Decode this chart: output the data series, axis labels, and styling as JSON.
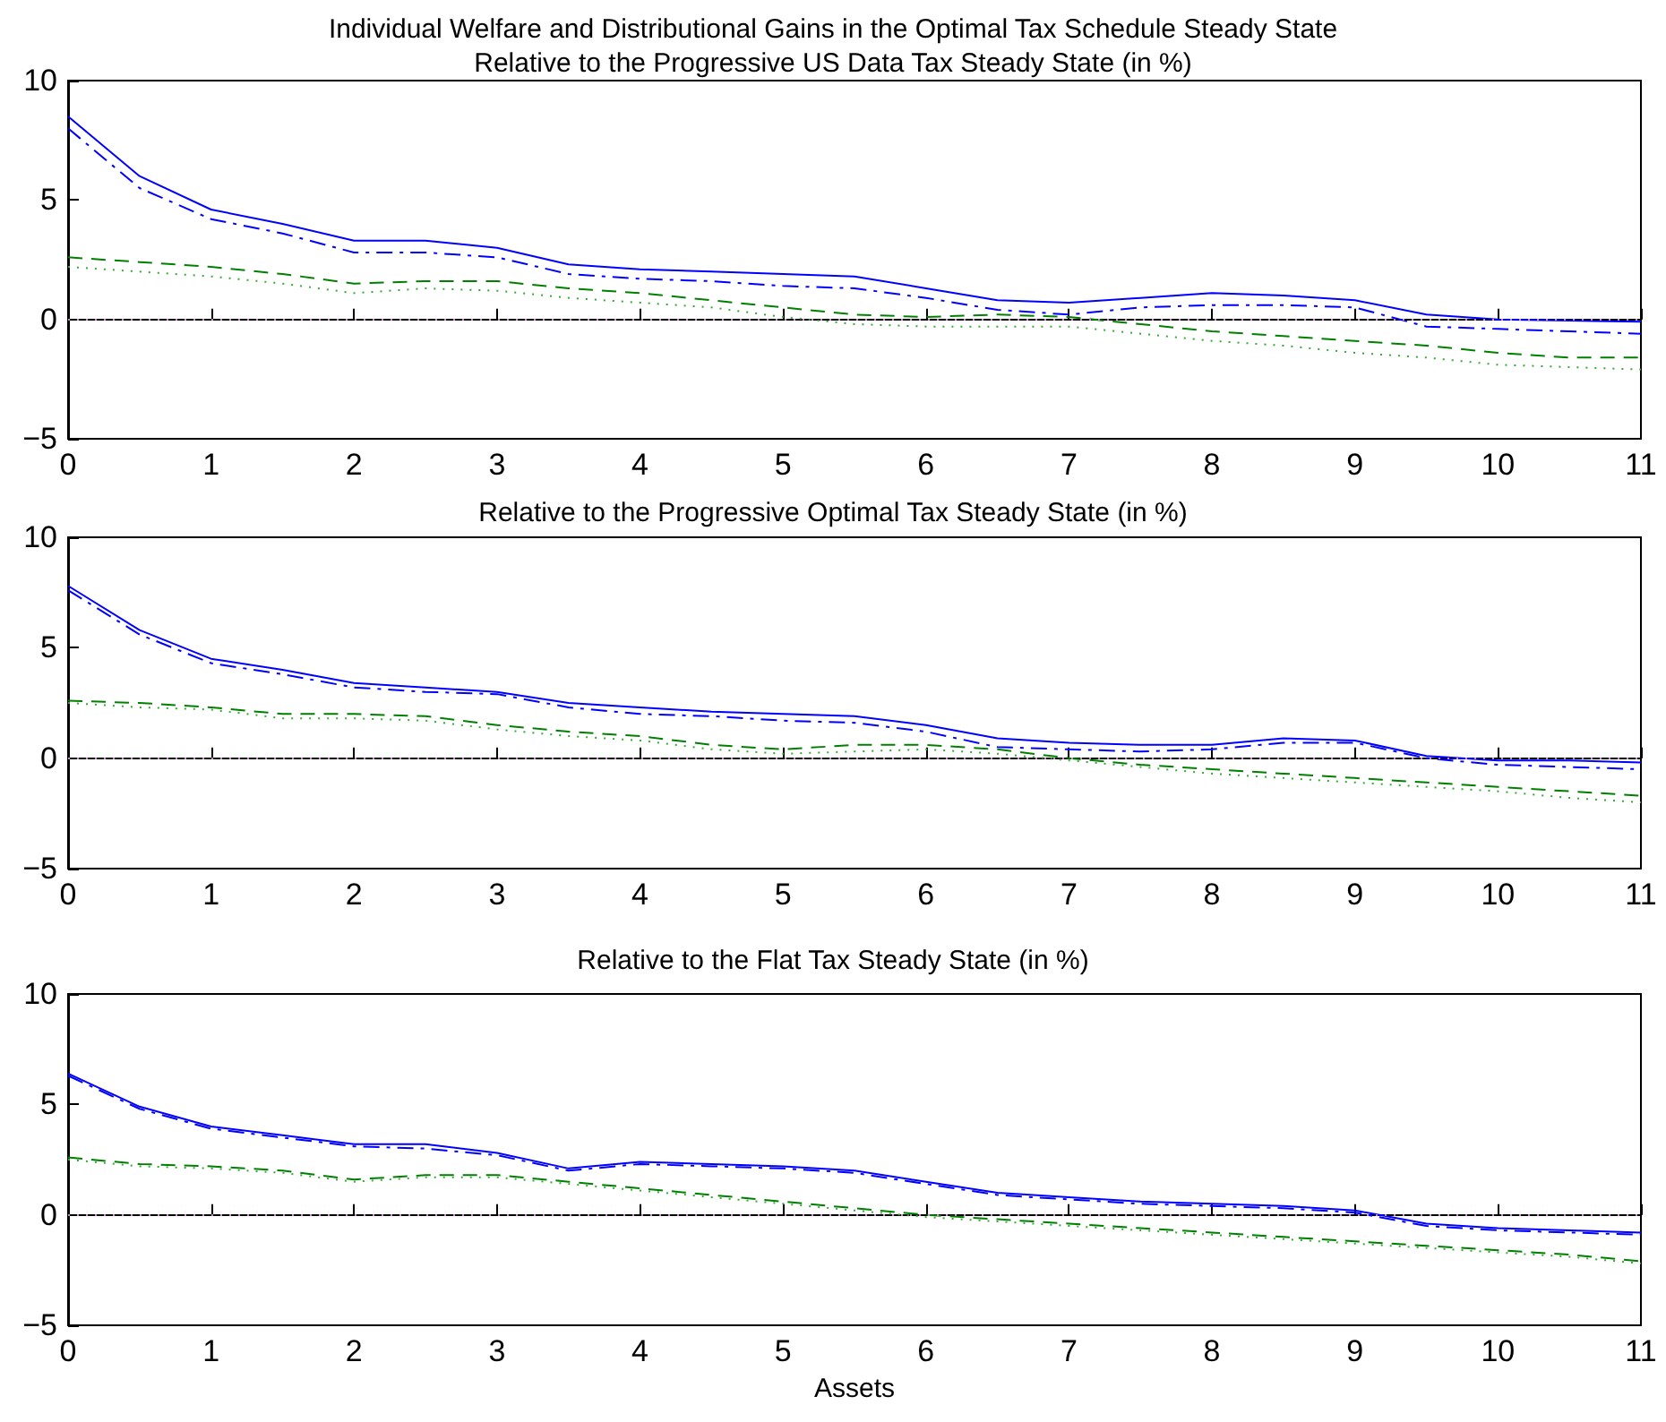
{
  "chart_data": [
    {
      "type": "line",
      "title": "Individual Welfare and Distributional Gains in the Optimal Tax Schedule Steady State",
      "subtitle": "Relative to the Progressive US Data Tax Steady State (in %)",
      "x": [
        0,
        0.5,
        1,
        1.5,
        2,
        2.5,
        3,
        3.5,
        4,
        4.5,
        5,
        5.5,
        6,
        6.5,
        7,
        7.5,
        8,
        8.5,
        9,
        9.5,
        10,
        10.5,
        11
      ],
      "series": [
        {
          "color": "#0000ff",
          "line_style": "solid",
          "values": [
            8.5,
            6.0,
            4.6,
            4.0,
            3.3,
            3.3,
            3.0,
            2.3,
            2.1,
            2.0,
            1.9,
            1.8,
            1.3,
            0.8,
            0.7,
            0.9,
            1.1,
            1.0,
            0.8,
            0.2,
            0.0,
            -0.05,
            -0.1
          ]
        },
        {
          "color": "#0000ff",
          "line_style": "dashed",
          "values": [
            8.0,
            5.5,
            4.2,
            3.6,
            2.8,
            2.8,
            2.6,
            1.9,
            1.7,
            1.6,
            1.4,
            1.3,
            0.9,
            0.4,
            0.2,
            0.5,
            0.6,
            0.6,
            0.5,
            -0.3,
            -0.4,
            -0.5,
            -0.6
          ]
        },
        {
          "color": "#008000",
          "line_style": "dashed",
          "values": [
            2.6,
            2.4,
            2.2,
            1.9,
            1.5,
            1.6,
            1.6,
            1.3,
            1.1,
            0.8,
            0.5,
            0.2,
            0.1,
            0.2,
            0.1,
            -0.2,
            -0.5,
            -0.7,
            -0.9,
            -1.1,
            -1.4,
            -1.6,
            -1.6
          ]
        },
        {
          "color": "#33aa33",
          "line_style": "dotted",
          "values": [
            2.2,
            2.0,
            1.8,
            1.5,
            1.1,
            1.3,
            1.2,
            0.9,
            0.7,
            0.5,
            0.1,
            -0.2,
            -0.3,
            -0.3,
            -0.3,
            -0.6,
            -0.9,
            -1.1,
            -1.4,
            -1.6,
            -1.9,
            -2.0,
            -2.1
          ]
        }
      ],
      "xlim": [
        0,
        11
      ],
      "xticks": [
        0,
        1,
        2,
        3,
        4,
        5,
        6,
        7,
        8,
        9,
        10,
        11
      ],
      "ylim": [
        -5,
        10
      ],
      "yticks": [
        -5,
        0,
        5,
        10
      ],
      "ref_lines": [
        {
          "axis": "y",
          "value": 0,
          "color": "#cc88cc",
          "line_style": "dotted"
        }
      ],
      "grid": false,
      "marker": "none"
    },
    {
      "type": "line",
      "title": "Relative to the Progressive Optimal Tax Steady State (in %)",
      "x": [
        0,
        0.5,
        1,
        1.5,
        2,
        2.5,
        3,
        3.5,
        4,
        4.5,
        5,
        5.5,
        6,
        6.5,
        7,
        7.5,
        8,
        8.5,
        9,
        9.5,
        10,
        10.5,
        11
      ],
      "series": [
        {
          "color": "#0000ff",
          "line_style": "solid",
          "values": [
            7.8,
            5.8,
            4.5,
            4.0,
            3.4,
            3.2,
            3.0,
            2.5,
            2.3,
            2.1,
            2.0,
            1.9,
            1.5,
            0.9,
            0.7,
            0.6,
            0.6,
            0.9,
            0.8,
            0.1,
            -0.1,
            -0.1,
            -0.2
          ]
        },
        {
          "color": "#0000ff",
          "line_style": "dashed",
          "values": [
            7.6,
            5.6,
            4.3,
            3.8,
            3.2,
            3.0,
            2.9,
            2.3,
            2.0,
            1.9,
            1.7,
            1.6,
            1.2,
            0.5,
            0.4,
            0.3,
            0.4,
            0.7,
            0.7,
            0.0,
            -0.3,
            -0.4,
            -0.5
          ]
        },
        {
          "color": "#008000",
          "line_style": "dashed",
          "values": [
            2.6,
            2.5,
            2.3,
            2.0,
            2.0,
            1.9,
            1.5,
            1.2,
            1.0,
            0.6,
            0.4,
            0.6,
            0.6,
            0.4,
            0.0,
            -0.3,
            -0.5,
            -0.7,
            -0.9,
            -1.1,
            -1.3,
            -1.5,
            -1.7
          ]
        },
        {
          "color": "#33aa33",
          "line_style": "dotted",
          "values": [
            2.5,
            2.3,
            2.2,
            1.8,
            1.8,
            1.7,
            1.3,
            1.0,
            0.8,
            0.4,
            0.2,
            0.3,
            0.4,
            0.2,
            -0.1,
            -0.4,
            -0.7,
            -0.9,
            -1.1,
            -1.3,
            -1.5,
            -1.8,
            -2.0
          ]
        }
      ],
      "xlim": [
        0,
        11
      ],
      "xticks": [
        0,
        1,
        2,
        3,
        4,
        5,
        6,
        7,
        8,
        9,
        10,
        11
      ],
      "ylim": [
        -5,
        10
      ],
      "yticks": [
        -5,
        0,
        5,
        10
      ],
      "ref_lines": [
        {
          "axis": "y",
          "value": 0,
          "color": "#cc88cc",
          "line_style": "dotted"
        }
      ],
      "grid": false,
      "marker": "none"
    },
    {
      "type": "line",
      "title": "Relative to the Flat Tax Steady State (in %)",
      "xlabel": "Assets",
      "x": [
        0,
        0.5,
        1,
        1.5,
        2,
        2.5,
        3,
        3.5,
        4,
        4.5,
        5,
        5.5,
        6,
        6.5,
        7,
        7.5,
        8,
        8.5,
        9,
        9.5,
        10,
        10.5,
        11
      ],
      "series": [
        {
          "color": "#0000ff",
          "line_style": "solid",
          "values": [
            6.4,
            4.9,
            4.0,
            3.6,
            3.2,
            3.2,
            2.8,
            2.1,
            2.4,
            2.3,
            2.2,
            2.0,
            1.5,
            1.0,
            0.8,
            0.6,
            0.5,
            0.4,
            0.2,
            -0.4,
            -0.6,
            -0.7,
            -0.8
          ]
        },
        {
          "color": "#0000ff",
          "line_style": "dashed",
          "values": [
            6.3,
            4.8,
            3.9,
            3.5,
            3.1,
            3.0,
            2.7,
            2.0,
            2.3,
            2.2,
            2.1,
            1.9,
            1.4,
            0.9,
            0.7,
            0.5,
            0.4,
            0.3,
            0.1,
            -0.5,
            -0.7,
            -0.8,
            -0.9
          ]
        },
        {
          "color": "#008000",
          "line_style": "dashed",
          "values": [
            2.6,
            2.3,
            2.2,
            2.0,
            1.6,
            1.8,
            1.8,
            1.5,
            1.2,
            0.9,
            0.6,
            0.3,
            0.0,
            -0.2,
            -0.4,
            -0.6,
            -0.8,
            -1.0,
            -1.2,
            -1.4,
            -1.6,
            -1.8,
            -2.1
          ]
        },
        {
          "color": "#33aa33",
          "line_style": "dotted",
          "values": [
            2.5,
            2.2,
            2.1,
            1.9,
            1.5,
            1.7,
            1.7,
            1.4,
            1.1,
            0.8,
            0.5,
            0.2,
            -0.1,
            -0.3,
            -0.5,
            -0.7,
            -0.9,
            -1.1,
            -1.3,
            -1.5,
            -1.7,
            -1.9,
            -2.2
          ]
        }
      ],
      "xlim": [
        0,
        11
      ],
      "xticks": [
        0,
        1,
        2,
        3,
        4,
        5,
        6,
        7,
        8,
        9,
        10,
        11
      ],
      "ylim": [
        -5,
        10
      ],
      "yticks": [
        -5,
        0,
        5,
        10
      ],
      "ref_lines": [
        {
          "axis": "y",
          "value": 0,
          "color": "#cc88cc",
          "line_style": "dotted"
        }
      ],
      "grid": false,
      "marker": "none"
    }
  ]
}
